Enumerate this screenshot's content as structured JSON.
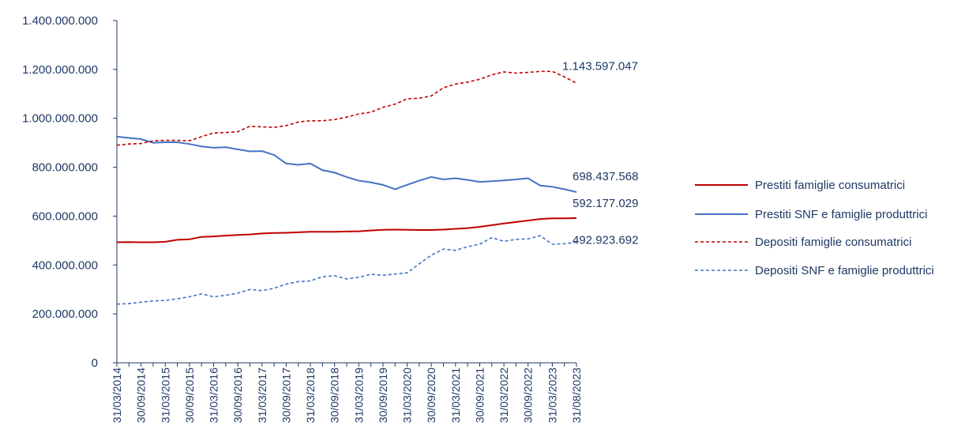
{
  "chart_data": {
    "type": "line",
    "categories": [
      "31/03/2014",
      null,
      "30/09/2014",
      null,
      "31/03/2015",
      null,
      "30/09/2015",
      null,
      "31/03/2016",
      null,
      "30/09/2016",
      null,
      "31/03/2017",
      null,
      "30/09/2017",
      null,
      "31/03/2018",
      null,
      "30/09/2018",
      null,
      "31/03/2019",
      null,
      "30/09/2019",
      null,
      "31/03/2020",
      null,
      "30/09/2020",
      null,
      "31/03/2021",
      null,
      "30/09/2021",
      null,
      "31/03/2022",
      null,
      "30/09/2022",
      null,
      "31/03/2023",
      null,
      "31/08/2023"
    ],
    "series": [
      {
        "name": "Prestiti famiglie consumatrici",
        "color": "#c00000",
        "line_style": "solid",
        "values": [
          493000000,
          494000000,
          493000000,
          493000000,
          495000000,
          503000000,
          505000000,
          515000000,
          517000000,
          520000000,
          523000000,
          525000000,
          529000000,
          531000000,
          532000000,
          534000000,
          536000000,
          536000000,
          536000000,
          537000000,
          538000000,
          541000000,
          544000000,
          545000000,
          544000000,
          543000000,
          543000000,
          545000000,
          548000000,
          551000000,
          556000000,
          563000000,
          570000000,
          576000000,
          582000000,
          588000000,
          591000000,
          591000000,
          592177029
        ],
        "value_labels": [
          null,
          null,
          null,
          null,
          null,
          null,
          null,
          null,
          null,
          null,
          null,
          null,
          null,
          null,
          null,
          null,
          null,
          null,
          null,
          null,
          null,
          null,
          null,
          null,
          null,
          null,
          null,
          null,
          null,
          null,
          null,
          null,
          null,
          null,
          null,
          null,
          null,
          null,
          "592.177.029"
        ]
      },
      {
        "name": "Prestiti SNF e famiglie produttrici",
        "color": "#4472c4",
        "line_style": "solid",
        "values": [
          925000000,
          920000000,
          915000000,
          900000000,
          902000000,
          902000000,
          895000000,
          885000000,
          880000000,
          882000000,
          873000000,
          865000000,
          866000000,
          850000000,
          815000000,
          810000000,
          815000000,
          788000000,
          778000000,
          760000000,
          745000000,
          738000000,
          728000000,
          710000000,
          728000000,
          745000000,
          760000000,
          750000000,
          755000000,
          748000000,
          740000000,
          743000000,
          746000000,
          750000000,
          755000000,
          725000000,
          720000000,
          710000000,
          698437568
        ],
        "value_labels": [
          null,
          null,
          null,
          null,
          null,
          null,
          null,
          null,
          null,
          null,
          null,
          null,
          null,
          null,
          null,
          null,
          null,
          null,
          null,
          null,
          null,
          null,
          null,
          null,
          null,
          null,
          null,
          null,
          null,
          null,
          null,
          null,
          null,
          null,
          null,
          null,
          null,
          null,
          "698.437.568"
        ]
      },
      {
        "name": "Depositi famiglie consumatrici",
        "color": "#c00000",
        "line_style": "dashed",
        "values": [
          890000000,
          895000000,
          897000000,
          908000000,
          910000000,
          910000000,
          908000000,
          925000000,
          940000000,
          942000000,
          945000000,
          968000000,
          965000000,
          963000000,
          970000000,
          985000000,
          990000000,
          990000000,
          995000000,
          1005000000,
          1018000000,
          1025000000,
          1045000000,
          1058000000,
          1080000000,
          1082000000,
          1092000000,
          1125000000,
          1140000000,
          1148000000,
          1160000000,
          1178000000,
          1190000000,
          1185000000,
          1188000000,
          1192000000,
          1192000000,
          1170000000,
          1143597047
        ],
        "value_labels": [
          null,
          null,
          null,
          null,
          null,
          null,
          null,
          null,
          null,
          null,
          null,
          null,
          null,
          null,
          null,
          null,
          null,
          null,
          null,
          null,
          null,
          null,
          null,
          null,
          null,
          null,
          null,
          null,
          null,
          null,
          null,
          null,
          null,
          null,
          null,
          null,
          null,
          null,
          "1.143.597.047"
        ]
      },
      {
        "name": "Depositi SNF e famiglie produttrici",
        "color": "#4472c4",
        "line_style": "dashed",
        "values": [
          240000000,
          242000000,
          248000000,
          253000000,
          255000000,
          262000000,
          270000000,
          282000000,
          270000000,
          276000000,
          285000000,
          300000000,
          295000000,
          305000000,
          322000000,
          332000000,
          335000000,
          352000000,
          356000000,
          343000000,
          350000000,
          362000000,
          358000000,
          363000000,
          368000000,
          405000000,
          440000000,
          465000000,
          460000000,
          475000000,
          485000000,
          512000000,
          497000000,
          505000000,
          507000000,
          520000000,
          485000000,
          487000000,
          492923692
        ],
        "value_labels": [
          null,
          null,
          null,
          null,
          null,
          null,
          null,
          null,
          null,
          null,
          null,
          null,
          null,
          null,
          null,
          null,
          null,
          null,
          null,
          null,
          null,
          null,
          null,
          null,
          null,
          null,
          null,
          null,
          null,
          null,
          null,
          null,
          null,
          null,
          null,
          null,
          null,
          null,
          "492.923.692"
        ]
      }
    ],
    "ylim": [
      0,
      1400000000
    ],
    "yticks": [
      0,
      {
        "value": 200000000,
        "label": "200.000.000"
      },
      {
        "value": 400000000,
        "label": "400.000.000"
      },
      {
        "value": 600000000,
        "label": "600.000.000"
      },
      {
        "value": 800000000,
        "label": "800.000.000"
      },
      {
        "value": 1000000000,
        "label": "1.000.000.000"
      },
      {
        "value": 1200000000,
        "label": "1.200.000.000"
      },
      {
        "value": 1400000000,
        "label": "1.400.000.000"
      }
    ],
    "legend": "right",
    "grid": false
  }
}
